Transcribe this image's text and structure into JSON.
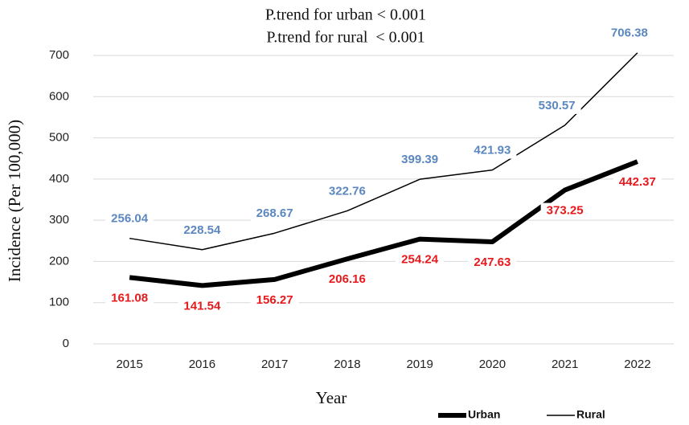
{
  "chart_data": {
    "type": "line",
    "title": [
      "P.trend for urban < 0.001",
      "P.trend for rural  < 0.001"
    ],
    "x_label": "Year",
    "y_label": "Incidence (Per 100,000)",
    "categories": [
      "2015",
      "2016",
      "2017",
      "2018",
      "2019",
      "2020",
      "2021",
      "2022"
    ],
    "series": [
      {
        "name": "Urban",
        "color": "#000000",
        "label_color": "#e8191c",
        "values": [
          161.08,
          141.54,
          156.27,
          206.16,
          254.24,
          247.63,
          373.25,
          442.37
        ]
      },
      {
        "name": "Rural",
        "color": "#000000",
        "label_color": "#5b87c0",
        "values": [
          256.04,
          228.54,
          268.67,
          322.76,
          399.39,
          421.93,
          530.57,
          706.38
        ]
      }
    ],
    "ylim": [
      0,
      700
    ],
    "yticks": [
      0,
      100,
      200,
      300,
      400,
      500,
      600,
      700
    ],
    "grid": true,
    "legend": "bottom-right"
  }
}
